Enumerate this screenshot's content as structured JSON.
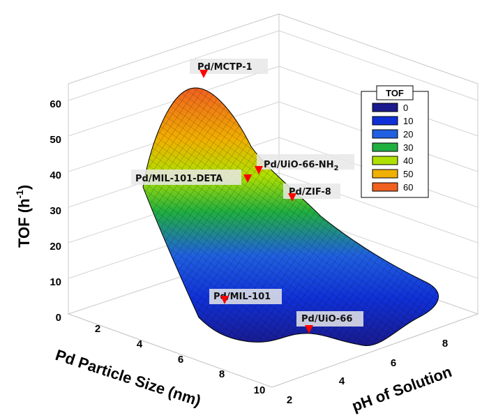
{
  "chart_data": {
    "type": "surface",
    "zlabel_main": "TOF (h",
    "zlabel_sup": "-1",
    "zlabel_end": ")",
    "xlabel": "Pd Particle Size (nm)",
    "ylabel": "pH of Solution",
    "x_ticks": [
      "2",
      "4",
      "6",
      "8",
      "10"
    ],
    "y_ticks": [
      "2",
      "4",
      "6",
      "8"
    ],
    "z_ticks": [
      "0",
      "10",
      "20",
      "30",
      "40",
      "50",
      "60"
    ],
    "xlim": [
      1,
      11
    ],
    "ylim": [
      1,
      9.5
    ],
    "zlim": [
      0,
      65
    ],
    "legend": {
      "title": "TOF",
      "position": "top-right",
      "entries": [
        {
          "label": "0",
          "color": "#1a1a8c"
        },
        {
          "label": "10",
          "color": "#1030d8"
        },
        {
          "label": "20",
          "color": "#2060e0"
        },
        {
          "label": "30",
          "color": "#20b040"
        },
        {
          "label": "40",
          "color": "#b0e000"
        },
        {
          "label": "50",
          "color": "#f0b000"
        },
        {
          "label": "60",
          "color": "#f06020"
        }
      ]
    },
    "annotations": [
      {
        "label": "Pd/MCTP-1",
        "sub": ""
      },
      {
        "label": "Pd/UiO-66-NH",
        "sub": "2"
      },
      {
        "label": "Pd/MIL-101-DETA",
        "sub": ""
      },
      {
        "label": "Pd/ZIF-8",
        "sub": ""
      },
      {
        "label": "Pd/MIL-101",
        "sub": ""
      },
      {
        "label": "Pd/UiO-66",
        "sub": ""
      }
    ],
    "surface_peak": {
      "x": 2.5,
      "y": 8,
      "tof": 62
    }
  }
}
